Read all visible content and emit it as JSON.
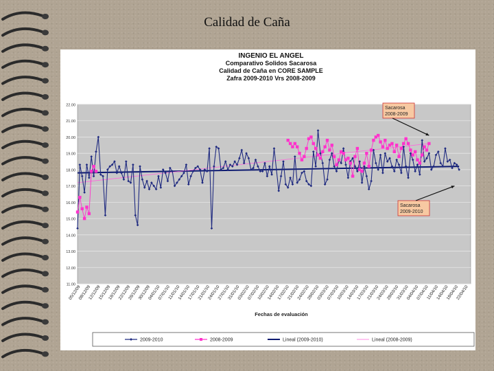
{
  "slide": {
    "title": "Calidad de Caña"
  },
  "chart_data": {
    "type": "line",
    "title_lines": [
      "INGENIO EL ANGEL",
      "Comparativo Solidos Sacarosa",
      "Calidad de Caña en CORE SAMPLE",
      "Zafra 2009-2010 Vrs 2008-2009"
    ],
    "xlabel": "Fechas de evaluación",
    "ylabel": "",
    "ylim": [
      11.0,
      22.0
    ],
    "y_ticks": [
      "22.00",
      "21.00",
      "20.00",
      "19.00",
      "18.00",
      "17.00",
      "16.00",
      "15.00",
      "14.00",
      "13.00",
      "12.00",
      "11.00"
    ],
    "x_ticks": [
      "05/12/09",
      "08/12/09",
      "12/12/09",
      "15/12/09",
      "18/12/09",
      "22/12/09",
      "26/12/09",
      "30/12/09",
      "04/01/10",
      "07/01/10",
      "11/01/10",
      "14/01/10",
      "17/01/10",
      "21/01/10",
      "24/01/10",
      "27/01/10",
      "31/01/10",
      "03/02/10",
      "07/02/10",
      "10/02/10",
      "14/02/10",
      "17/02/10",
      "21/02/10",
      "24/02/10",
      "28/02/10",
      "03/03/10",
      "07/03/10",
      "10/03/10",
      "14/03/10",
      "17/03/10",
      "21/03/10",
      "24/03/10",
      "28/03/10",
      "31/03/10",
      "04/04/10",
      "07/04/10",
      "11/04/10",
      "14/04/10",
      "18/04/10",
      "22/04/10"
    ],
    "grid": true,
    "legend_position": "bottom",
    "colors": {
      "series_2009_2010": "#1f2a80",
      "series_2008_2009": "#ff33cc",
      "plot_bg": "#c8c8c8",
      "grid": "#e6e6e6"
    },
    "annotations": [
      {
        "label": "Sacarosa 2008-2009",
        "lines": [
          "Sacarosa",
          "2008-2009"
        ],
        "points_to_x": 152,
        "points_to_y": 20.1
      },
      {
        "label": "Sacarosa 2009-2010",
        "lines": [
          "Sacarosa",
          "2009-2010"
        ],
        "points_to_x": 163,
        "points_to_y": 17.0
      }
    ],
    "legend": [
      "2009-2010",
      "2008-2009",
      "Lineal (2009-2010)",
      "Lineal (2008-2009)"
    ],
    "series": [
      {
        "name": "2009-2010",
        "style": "line-marker",
        "points": [
          [
            0,
            14.4
          ],
          [
            1,
            18.3
          ],
          [
            2,
            17.6
          ],
          [
            3,
            16.6
          ],
          [
            4,
            18.3
          ],
          [
            5,
            17.5
          ],
          [
            6,
            18.8
          ],
          [
            7,
            17.6
          ],
          [
            8,
            19.1
          ],
          [
            9,
            20.0
          ],
          [
            10,
            17.7
          ],
          [
            11,
            17.6
          ],
          [
            12,
            15.2
          ],
          [
            13,
            18.0
          ],
          [
            14,
            18.2
          ],
          [
            15,
            18.3
          ],
          [
            16,
            18.5
          ],
          [
            17,
            17.8
          ],
          [
            18,
            18.2
          ],
          [
            19,
            17.8
          ],
          [
            20,
            17.4
          ],
          [
            21,
            18.5
          ],
          [
            22,
            17.3
          ],
          [
            23,
            17.2
          ],
          [
            24,
            18.3
          ],
          [
            25,
            15.2
          ],
          [
            26,
            14.6
          ],
          [
            27,
            18.2
          ],
          [
            28,
            17.4
          ],
          [
            29,
            16.9
          ],
          [
            30,
            17.3
          ],
          [
            31,
            16.8
          ],
          [
            32,
            17.2
          ],
          [
            33,
            17.0
          ],
          [
            34,
            16.8
          ],
          [
            35,
            17.6
          ],
          [
            36,
            16.9
          ],
          [
            37,
            18.0
          ],
          [
            38,
            17.8
          ],
          [
            39,
            17.3
          ],
          [
            40,
            18.1
          ],
          [
            41,
            17.9
          ],
          [
            42,
            17.0
          ],
          [
            43,
            17.2
          ],
          [
            44,
            17.4
          ],
          [
            45,
            17.6
          ],
          [
            46,
            17.8
          ],
          [
            47,
            18.3
          ],
          [
            48,
            17.1
          ],
          [
            49,
            17.6
          ],
          [
            50,
            17.9
          ],
          [
            51,
            18.1
          ],
          [
            52,
            18.2
          ],
          [
            53,
            18.0
          ],
          [
            54,
            17.2
          ],
          [
            55,
            18.0
          ],
          [
            56,
            17.9
          ],
          [
            57,
            19.3
          ],
          [
            58,
            14.4
          ],
          [
            59,
            18.2
          ],
          [
            60,
            19.4
          ],
          [
            61,
            19.3
          ],
          [
            62,
            18.0
          ],
          [
            63,
            18.1
          ],
          [
            64,
            18.5
          ],
          [
            65,
            18.0
          ],
          [
            66,
            18.3
          ],
          [
            67,
            18.2
          ],
          [
            68,
            18.5
          ],
          [
            69,
            18.3
          ],
          [
            70,
            18.7
          ],
          [
            71,
            19.2
          ],
          [
            72,
            18.4
          ],
          [
            73,
            19.0
          ],
          [
            74,
            18.7
          ],
          [
            75,
            18.0
          ],
          [
            76,
            18.1
          ],
          [
            77,
            18.6
          ],
          [
            78,
            18.2
          ],
          [
            79,
            17.9
          ],
          [
            80,
            17.9
          ],
          [
            81,
            18.4
          ],
          [
            82,
            17.6
          ],
          [
            83,
            18.2
          ],
          [
            84,
            17.7
          ],
          [
            85,
            19.3
          ],
          [
            86,
            18.0
          ],
          [
            87,
            16.7
          ],
          [
            88,
            17.6
          ],
          [
            89,
            18.5
          ],
          [
            90,
            17.1
          ],
          [
            91,
            16.9
          ],
          [
            92,
            17.5
          ],
          [
            93,
            17.1
          ],
          [
            94,
            18.8
          ],
          [
            95,
            17.2
          ],
          [
            96,
            17.4
          ],
          [
            97,
            17.8
          ],
          [
            98,
            17.9
          ],
          [
            99,
            17.3
          ],
          [
            100,
            17.1
          ],
          [
            101,
            17.0
          ],
          [
            102,
            19.1
          ],
          [
            103,
            18.2
          ],
          [
            104,
            20.4
          ],
          [
            105,
            19.0
          ],
          [
            106,
            18.4
          ],
          [
            107,
            17.1
          ],
          [
            108,
            17.4
          ],
          [
            109,
            18.6
          ],
          [
            110,
            19.0
          ],
          [
            111,
            18.2
          ],
          [
            112,
            17.9
          ],
          [
            113,
            18.6
          ],
          [
            114,
            18.4
          ],
          [
            115,
            19.3
          ],
          [
            116,
            18.3
          ],
          [
            117,
            17.5
          ],
          [
            118,
            18.5
          ],
          [
            119,
            18.7
          ],
          [
            120,
            18.2
          ],
          [
            121,
            17.9
          ],
          [
            122,
            18.5
          ],
          [
            123,
            17.2
          ],
          [
            124,
            18.2
          ],
          [
            125,
            17.6
          ],
          [
            126,
            16.8
          ],
          [
            127,
            17.3
          ],
          [
            128,
            19.2
          ],
          [
            129,
            18.4
          ],
          [
            130,
            18.0
          ],
          [
            131,
            18.9
          ],
          [
            132,
            17.8
          ],
          [
            133,
            19.0
          ],
          [
            134,
            18.5
          ],
          [
            135,
            18.7
          ],
          [
            136,
            18.2
          ],
          [
            137,
            17.9
          ],
          [
            138,
            18.6
          ],
          [
            139,
            18.3
          ],
          [
            140,
            17.8
          ],
          [
            141,
            19.4
          ],
          [
            142,
            18.2
          ],
          [
            143,
            17.5
          ],
          [
            144,
            19.0
          ],
          [
            145,
            18.6
          ],
          [
            146,
            17.9
          ],
          [
            147,
            18.3
          ],
          [
            148,
            17.7
          ],
          [
            149,
            19.8
          ],
          [
            150,
            18.5
          ],
          [
            151,
            18.7
          ],
          [
            152,
            19.0
          ],
          [
            153,
            18.0
          ],
          [
            154,
            18.2
          ],
          [
            155,
            18.9
          ],
          [
            156,
            19.1
          ],
          [
            157,
            18.4
          ],
          [
            158,
            18.2
          ],
          [
            159,
            19.3
          ],
          [
            160,
            18.5
          ],
          [
            161,
            18.6
          ],
          [
            162,
            18.1
          ],
          [
            163,
            18.4
          ],
          [
            164,
            18.3
          ],
          [
            165,
            18.0
          ]
        ]
      },
      {
        "name": "2008-2009",
        "style": "line-marker",
        "points": [
          [
            0,
            15.4
          ],
          [
            1,
            16.3
          ],
          [
            2,
            15.6
          ],
          [
            3,
            15.0
          ],
          [
            4,
            15.7
          ],
          [
            5,
            15.3
          ],
          [
            6,
            17.9
          ],
          [
            7,
            18.2
          ],
          [
            8,
            17.9
          ],
          [
            91,
            19.8
          ],
          [
            92,
            19.6
          ],
          [
            93,
            19.4
          ],
          [
            94,
            19.6
          ],
          [
            95,
            19.4
          ],
          [
            96,
            19.0
          ],
          [
            97,
            18.6
          ],
          [
            98,
            18.8
          ],
          [
            99,
            19.3
          ],
          [
            100,
            19.9
          ],
          [
            101,
            20.0
          ],
          [
            102,
            19.6
          ],
          [
            103,
            19.3
          ],
          [
            104,
            18.9
          ],
          [
            105,
            18.7
          ],
          [
            106,
            19.1
          ],
          [
            107,
            19.4
          ],
          [
            108,
            19.8
          ],
          [
            109,
            19.2
          ],
          [
            110,
            19.5
          ],
          [
            111,
            18.8
          ],
          [
            112,
            18.3
          ],
          [
            113,
            18.6
          ],
          [
            114,
            19.1
          ],
          [
            115,
            19.0
          ],
          [
            116,
            18.6
          ],
          [
            117,
            18.7
          ],
          [
            118,
            18.4
          ],
          [
            119,
            17.6
          ],
          [
            120,
            18.8
          ],
          [
            121,
            19.3
          ],
          [
            122,
            18.0
          ],
          [
            123,
            17.9
          ],
          [
            124,
            18.4
          ],
          [
            125,
            19.0
          ],
          [
            126,
            18.2
          ],
          [
            127,
            19.2
          ],
          [
            128,
            19.8
          ],
          [
            129,
            20.0
          ],
          [
            130,
            20.1
          ],
          [
            131,
            19.7
          ],
          [
            132,
            19.4
          ],
          [
            133,
            19.8
          ],
          [
            134,
            19.3
          ],
          [
            135,
            19.5
          ],
          [
            136,
            19.6
          ],
          [
            137,
            19.1
          ],
          [
            138,
            19.5
          ],
          [
            139,
            18.8
          ],
          [
            140,
            19.3
          ],
          [
            141,
            19.6
          ],
          [
            142,
            19.9
          ],
          [
            143,
            19.6
          ],
          [
            144,
            19.2
          ],
          [
            145,
            18.9
          ],
          [
            146,
            19.1
          ],
          [
            147,
            18.6
          ],
          [
            148,
            18.4
          ],
          [
            149,
            18.9
          ],
          [
            150,
            19.4
          ],
          [
            151,
            19.2
          ],
          [
            152,
            19.6
          ]
        ]
      }
    ],
    "trendlines": [
      {
        "name": "Lineal (2009-2010)",
        "from": [
          0,
          17.8
        ],
        "to": [
          165,
          18.2
        ]
      },
      {
        "name": "Lineal (2008-2009)",
        "from": [
          0,
          17.2
        ],
        "to": [
          152,
          19.6
        ]
      }
    ]
  }
}
